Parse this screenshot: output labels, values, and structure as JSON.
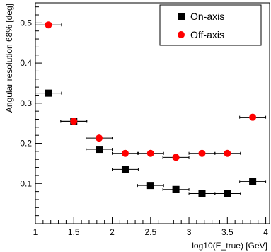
{
  "chart_data": {
    "type": "scatter",
    "title": "",
    "xlabel": "log10(E_true) [GeV]",
    "ylabel": "Angular resolution 68% [deg]",
    "xlim": [
      1,
      4.05
    ],
    "ylim": [
      0,
      0.55
    ],
    "x_ticks": [
      1,
      1.5,
      2,
      2.5,
      3,
      3.5,
      4
    ],
    "x_tick_labels": [
      "1",
      "1.5",
      "2",
      "2.5",
      "3",
      "3.5",
      "4"
    ],
    "y_ticks": [
      0.1,
      0.2,
      0.3,
      0.4,
      0.5
    ],
    "y_tick_labels": [
      "0.1",
      "0.2",
      "0.3",
      "0.4",
      "0.5"
    ],
    "grid": false,
    "legend_position": "top-right",
    "series": [
      {
        "name": "On-axis",
        "marker": "square",
        "color": "#000000",
        "points": [
          {
            "x": 1.17,
            "xerr": 0.17,
            "y": 0.325
          },
          {
            "x": 1.5,
            "xerr": 0.17,
            "y": 0.255
          },
          {
            "x": 1.83,
            "xerr": 0.17,
            "y": 0.185
          },
          {
            "x": 2.17,
            "xerr": 0.17,
            "y": 0.135
          },
          {
            "x": 2.5,
            "xerr": 0.17,
            "y": 0.095
          },
          {
            "x": 2.83,
            "xerr": 0.17,
            "y": 0.085
          },
          {
            "x": 3.17,
            "xerr": 0.17,
            "y": 0.075
          },
          {
            "x": 3.5,
            "xerr": 0.17,
            "y": 0.075
          },
          {
            "x": 3.83,
            "xerr": 0.17,
            "y": 0.105
          }
        ]
      },
      {
        "name": "Off-axis",
        "marker": "circle",
        "color": "#ff0000",
        "points": [
          {
            "x": 1.17,
            "xerr": 0.17,
            "y": 0.495
          },
          {
            "x": 1.5,
            "xerr": 0.17,
            "y": 0.255
          },
          {
            "x": 1.83,
            "xerr": 0.17,
            "y": 0.213
          },
          {
            "x": 2.17,
            "xerr": 0.17,
            "y": 0.175
          },
          {
            "x": 2.5,
            "xerr": 0.17,
            "y": 0.175
          },
          {
            "x": 2.83,
            "xerr": 0.17,
            "y": 0.165
          },
          {
            "x": 3.17,
            "xerr": 0.17,
            "y": 0.175
          },
          {
            "x": 3.5,
            "xerr": 0.17,
            "y": 0.175
          },
          {
            "x": 3.83,
            "xerr": 0.17,
            "y": 0.265
          }
        ]
      }
    ]
  }
}
